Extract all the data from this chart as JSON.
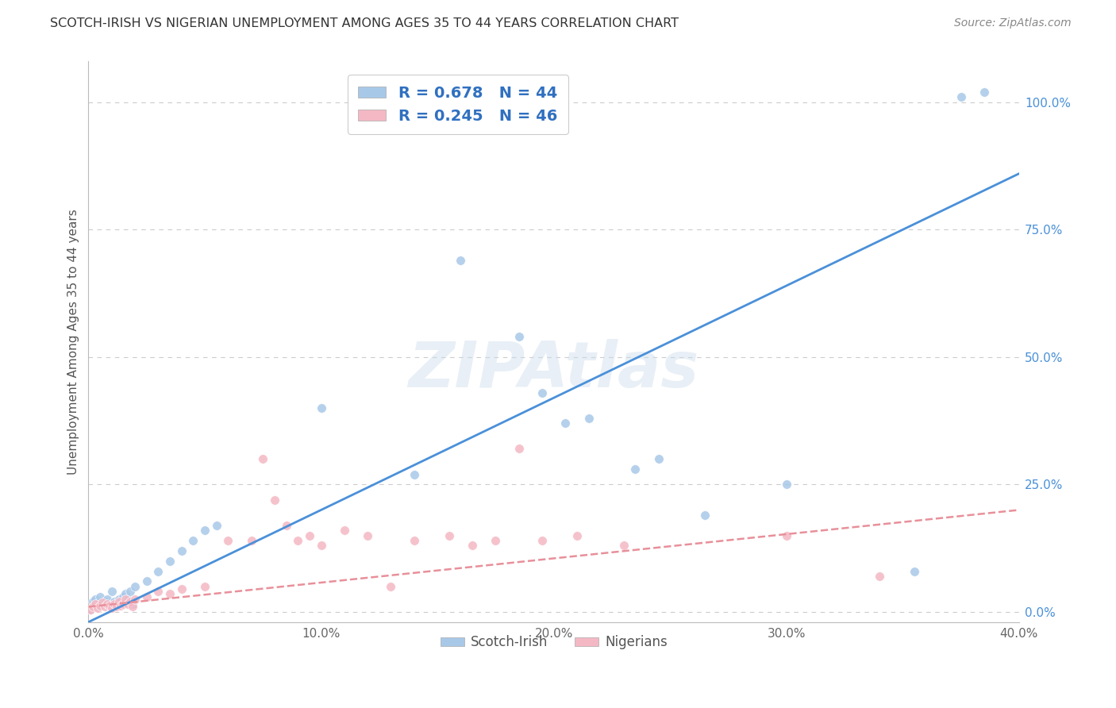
{
  "title": "SCOTCH-IRISH VS NIGERIAN UNEMPLOYMENT AMONG AGES 35 TO 44 YEARS CORRELATION CHART",
  "source": "Source: ZipAtlas.com",
  "ylabel": "Unemployment Among Ages 35 to 44 years",
  "xlim": [
    0.0,
    0.4
  ],
  "ylim": [
    -0.02,
    1.08
  ],
  "xticks": [
    0.0,
    0.1,
    0.2,
    0.3,
    0.4
  ],
  "xtick_labels": [
    "0.0%",
    "10.0%",
    "20.0%",
    "30.0%",
    "40.0%"
  ],
  "yticks": [
    0.0,
    0.25,
    0.5,
    0.75,
    1.0
  ],
  "ytick_labels": [
    "0.0%",
    "25.0%",
    "50.0%",
    "75.0%",
    "100.0%"
  ],
  "scotch_irish_color": "#a8c8e8",
  "nigerian_color": "#f4b8c4",
  "scotch_irish_line_color": "#4a90d9",
  "nigerian_line_color": "#e8909a",
  "legend_text_color": "#3070c0",
  "scotch_irish_R": 0.678,
  "scotch_irish_N": 44,
  "nigerian_R": 0.245,
  "nigerian_N": 46,
  "si_line_x0": 0.0,
  "si_line_y0": -0.02,
  "si_line_x1": 0.4,
  "si_line_y1": 0.86,
  "ng_line_x0": 0.0,
  "ng_line_y0": 0.01,
  "ng_line_x1": 0.4,
  "ng_line_y1": 0.2,
  "scotch_irish_x": [
    0.001,
    0.002,
    0.002,
    0.003,
    0.003,
    0.004,
    0.005,
    0.005,
    0.006,
    0.007,
    0.008,
    0.009,
    0.01,
    0.011,
    0.012,
    0.013,
    0.014,
    0.015,
    0.016,
    0.017,
    0.018,
    0.019,
    0.02,
    0.025,
    0.03,
    0.035,
    0.04,
    0.045,
    0.05,
    0.055,
    0.1,
    0.14,
    0.16,
    0.185,
    0.195,
    0.205,
    0.215,
    0.235,
    0.245,
    0.265,
    0.3,
    0.355,
    0.375,
    0.385
  ],
  "scotch_irish_y": [
    0.005,
    0.01,
    0.02,
    0.015,
    0.025,
    0.01,
    0.02,
    0.03,
    0.015,
    0.02,
    0.025,
    0.01,
    0.04,
    0.02,
    0.015,
    0.025,
    0.02,
    0.03,
    0.035,
    0.025,
    0.04,
    0.015,
    0.05,
    0.06,
    0.08,
    0.1,
    0.12,
    0.14,
    0.16,
    0.17,
    0.4,
    0.27,
    0.69,
    0.54,
    0.43,
    0.37,
    0.38,
    0.28,
    0.3,
    0.19,
    0.25,
    0.08,
    1.01,
    1.02
  ],
  "nigerian_x": [
    0.001,
    0.002,
    0.003,
    0.004,
    0.005,
    0.006,
    0.007,
    0.008,
    0.009,
    0.01,
    0.011,
    0.012,
    0.013,
    0.014,
    0.015,
    0.016,
    0.017,
    0.018,
    0.019,
    0.02,
    0.025,
    0.03,
    0.035,
    0.04,
    0.05,
    0.06,
    0.07,
    0.075,
    0.08,
    0.085,
    0.09,
    0.095,
    0.1,
    0.11,
    0.12,
    0.13,
    0.14,
    0.155,
    0.165,
    0.175,
    0.185,
    0.195,
    0.21,
    0.23,
    0.3,
    0.34
  ],
  "nigerian_y": [
    0.005,
    0.01,
    0.015,
    0.008,
    0.012,
    0.018,
    0.01,
    0.015,
    0.012,
    0.008,
    0.015,
    0.01,
    0.02,
    0.012,
    0.015,
    0.025,
    0.015,
    0.02,
    0.01,
    0.025,
    0.03,
    0.04,
    0.035,
    0.045,
    0.05,
    0.14,
    0.14,
    0.3,
    0.22,
    0.17,
    0.14,
    0.15,
    0.13,
    0.16,
    0.15,
    0.05,
    0.14,
    0.15,
    0.13,
    0.14,
    0.32,
    0.14,
    0.15,
    0.13,
    0.15,
    0.07
  ]
}
